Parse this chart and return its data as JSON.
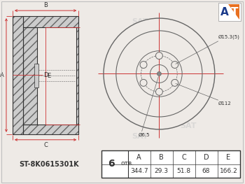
{
  "bg_color": "#eeeae6",
  "line_color": "#666666",
  "red_color": "#cc3333",
  "dark_color": "#333333",
  "title_part": "ST-8K0615301K",
  "bolt_count": "6",
  "otb_label": "отв.",
  "dim_A": "344.7",
  "dim_B": "29.3",
  "dim_C": "51.8",
  "dim_D": "68",
  "dim_E": "166.2",
  "annotation_bolt_hole": "Ø15.3(5)",
  "annotation_center": "Ø6.5",
  "annotation_pcd": "Ø112",
  "logo_color_orange": "#e87020",
  "logo_color_blue": "#1a3a8a",
  "hatch_color": "#aaaaaa",
  "fill_color": "#cccccc"
}
